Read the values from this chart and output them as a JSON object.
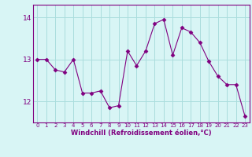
{
  "x": [
    0,
    1,
    2,
    3,
    4,
    5,
    6,
    7,
    8,
    9,
    10,
    11,
    12,
    13,
    14,
    15,
    16,
    17,
    18,
    19,
    20,
    21,
    22,
    23
  ],
  "y": [
    13.0,
    13.0,
    12.75,
    12.7,
    13.0,
    12.2,
    12.2,
    12.25,
    11.85,
    11.9,
    13.2,
    12.85,
    13.2,
    13.85,
    13.95,
    13.1,
    13.75,
    13.65,
    13.4,
    12.95,
    12.6,
    12.4,
    12.4,
    11.65
  ],
  "line_color": "#800080",
  "marker": "D",
  "marker_size": 2.5,
  "bg_color": "#d8f5f5",
  "grid_color": "#aadddd",
  "xlabel": "Windchill (Refroidissement éolien,°C)",
  "xlabel_color": "#800080",
  "tick_color": "#800080",
  "ylim": [
    11.5,
    14.3
  ],
  "yticks": [
    12,
    13,
    14
  ],
  "xlim": [
    -0.5,
    23.5
  ],
  "xticks": [
    0,
    1,
    2,
    3,
    4,
    5,
    6,
    7,
    8,
    9,
    10,
    11,
    12,
    13,
    14,
    15,
    16,
    17,
    18,
    19,
    20,
    21,
    22,
    23
  ],
  "spine_color": "#800080"
}
